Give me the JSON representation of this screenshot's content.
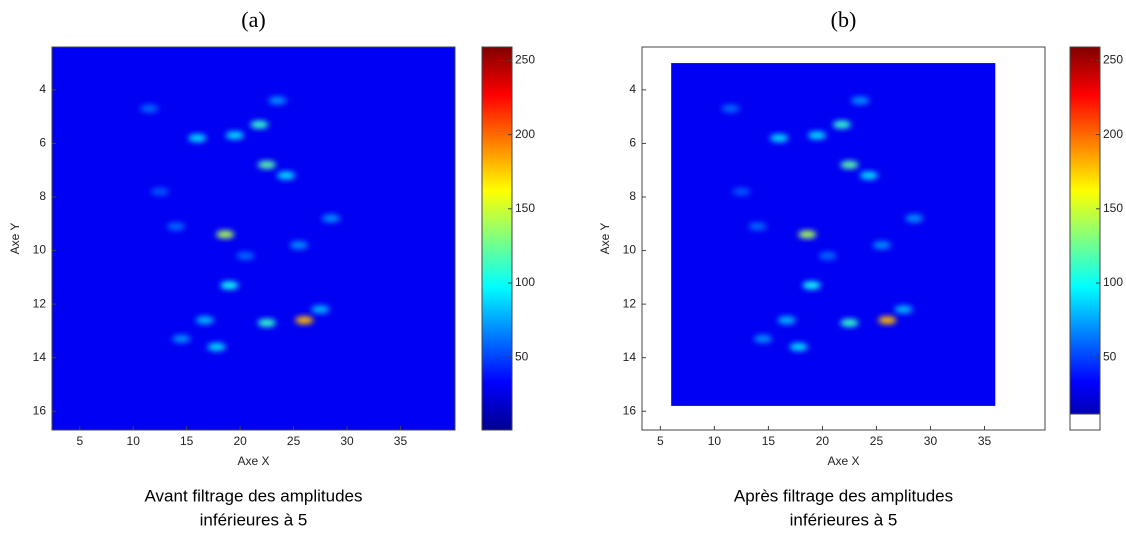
{
  "chart_data": [
    {
      "type": "heatmap",
      "title": "(a)",
      "caption": [
        "Avant filtrage des amplitudes",
        "inférieures à 5"
      ],
      "xlabel": "Axe X",
      "ylabel": "Axe Y",
      "xlim": [
        2.4,
        40.1
      ],
      "ylim": [
        2.4,
        16.7
      ],
      "xticks": [
        5,
        10,
        15,
        20,
        25,
        30,
        35
      ],
      "yticks": [
        4,
        6,
        8,
        10,
        12,
        14,
        16
      ],
      "clim": [
        1,
        259
      ],
      "cticks": [
        50,
        100,
        150,
        200,
        250
      ],
      "background": 30,
      "points": {
        "x": [
          21.8,
          19.5,
          16,
          22.5,
          24.3,
          18.6,
          19,
          22.5,
          26,
          17.8,
          14.5,
          16.7,
          27.5,
          28.5,
          14,
          11.5,
          23.5,
          20.5,
          25.5,
          12.5
        ],
        "y": [
          5.3,
          5.7,
          5.8,
          6.8,
          7.2,
          9.4,
          11.3,
          12.7,
          12.6,
          13.6,
          13.3,
          12.6,
          12.2,
          8.8,
          9.1,
          4.7,
          4.4,
          10.2,
          9.8,
          7.8
        ],
        "values": [
          110,
          90,
          90,
          120,
          90,
          140,
          100,
          110,
          180,
          90,
          70,
          80,
          80,
          70,
          60,
          60,
          70,
          60,
          70,
          55
        ]
      }
    },
    {
      "type": "heatmap",
      "title": "(b)",
      "caption": [
        "Après filtrage des amplitudes",
        "inférieures à 5"
      ],
      "xlabel": "Axe X",
      "ylabel": "Axe Y",
      "xlim": [
        3.3,
        40.6
      ],
      "ylim": [
        2.4,
        16.7
      ],
      "xticks": [
        5,
        10,
        15,
        20,
        25,
        30,
        35
      ],
      "yticks": [
        4,
        6,
        8,
        10,
        12,
        14,
        16
      ],
      "clim": [
        1,
        259
      ],
      "cticks": [
        50,
        100,
        150,
        200,
        250
      ],
      "background": 30,
      "mask": {
        "x": [
          6,
          36
        ],
        "y": [
          3,
          15.8
        ]
      },
      "under_color": "#ffffff",
      "points": {
        "x": [
          21.8,
          19.5,
          16,
          22.5,
          24.3,
          18.6,
          19,
          22.5,
          26,
          17.8,
          14.5,
          16.7,
          27.5,
          28.5,
          14,
          11.5,
          23.5,
          20.5,
          25.5,
          12.5
        ],
        "y": [
          5.3,
          5.7,
          5.8,
          6.8,
          7.2,
          9.4,
          11.3,
          12.7,
          12.6,
          13.6,
          13.3,
          12.6,
          12.2,
          8.8,
          9.1,
          4.7,
          4.4,
          10.2,
          9.8,
          7.8
        ],
        "values": [
          110,
          90,
          90,
          120,
          90,
          140,
          100,
          110,
          180,
          90,
          70,
          80,
          80,
          70,
          60,
          60,
          70,
          60,
          70,
          55
        ]
      }
    }
  ]
}
